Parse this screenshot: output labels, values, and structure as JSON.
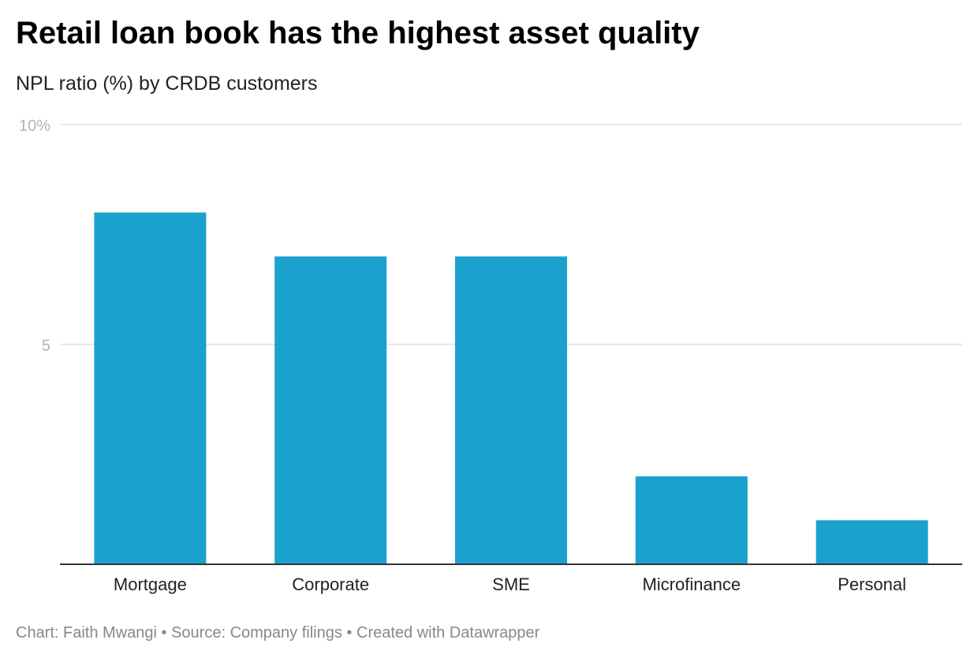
{
  "title": "Retail loan book has the highest asset quality",
  "subtitle": "NPL ratio (%) by CRDB customers",
  "footer": {
    "chart_by": "Chart: Faith Mwangi",
    "source": "Source: Company filings",
    "created_with": "Created with Datawrapper",
    "separator": " • "
  },
  "colors": {
    "bar": "#1aa1ce",
    "grid": "#e0e0e0",
    "baseline": "#333333",
    "tick_text": "#b3b3b3",
    "category_text": "#222222"
  },
  "chart_data": {
    "type": "bar",
    "categories": [
      "Mortgage",
      "Corporate",
      "SME",
      "Microfinance",
      "Personal"
    ],
    "values": [
      8,
      7,
      7,
      2,
      1
    ],
    "ylim": [
      0,
      10
    ],
    "yticks": [
      {
        "value": 10,
        "label": "10%"
      },
      {
        "value": 5,
        "label": "5"
      }
    ],
    "grid": true,
    "xlabel": "",
    "ylabel": ""
  }
}
